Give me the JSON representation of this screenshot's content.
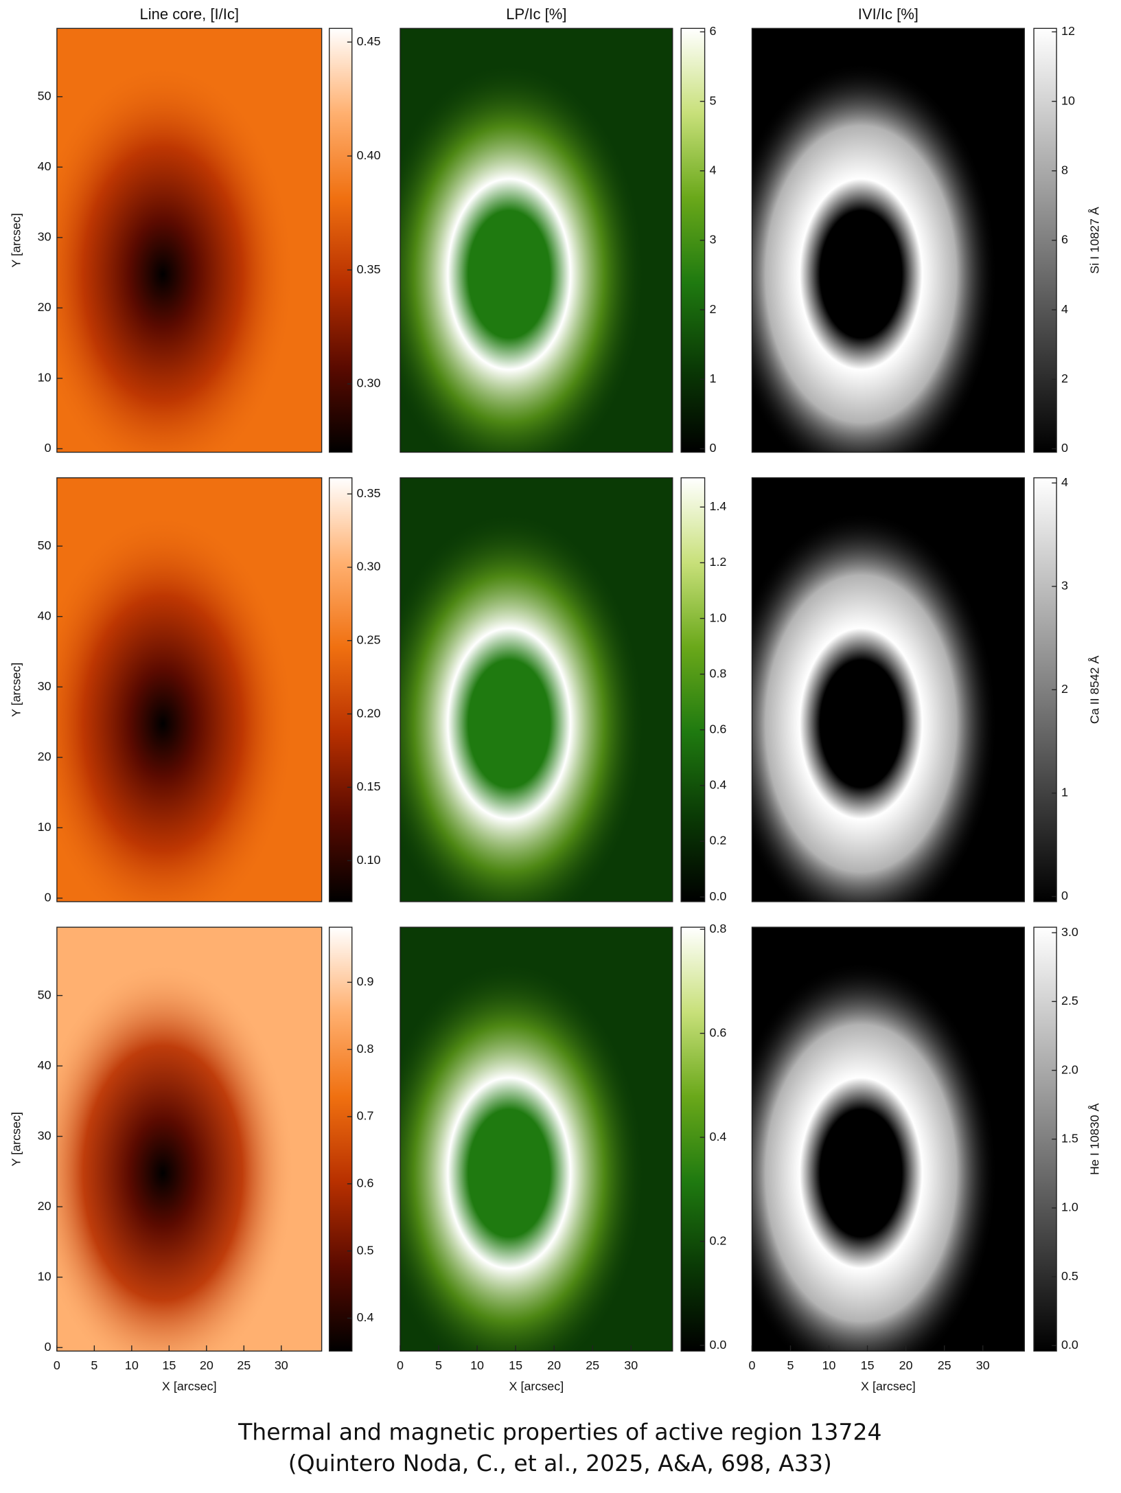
{
  "caption": [
    "Thermal and magnetic properties of active region 13724",
    "(Quintero Noda, C., et al., 2025, A&A, 698, A33)"
  ],
  "chart_data": [
    {
      "type": "image",
      "title": "Line core, [I/Ic]",
      "ylabel": "Y [arcsec]",
      "xlim": [
        0,
        35.4
      ],
      "ylim": [
        -0.5,
        59.7
      ],
      "yticks": [
        0,
        10,
        20,
        30,
        40,
        50
      ],
      "colorbar": {
        "lim": [
          0.27,
          0.456
        ],
        "ticks": [
          {
            "value": 0.3,
            "label": "0.30"
          },
          0.35,
          {
            "value": 0.4,
            "label": "0.40"
          },
          0.45
        ],
        "colormap": [
          "#000000",
          "#5a0a00",
          "#b83000",
          "#f07010",
          "#ffb070",
          "#ffffff"
        ]
      }
    },
    {
      "type": "image",
      "title": "LP/Ic [%]",
      "xlim": [
        0,
        35.4
      ],
      "ylim": [
        -0.5,
        59.7
      ],
      "colorbar": {
        "lim": [
          -0.05,
          6.05
        ],
        "ticks": [
          0,
          1,
          2,
          3,
          4,
          5,
          6
        ],
        "colormap": [
          "#000000",
          "#0a3a05",
          "#1f7a10",
          "#6aa81a",
          "#c8e07a",
          "#ffffff"
        ]
      }
    },
    {
      "type": "image",
      "title": "IVI/Ic [%]",
      "right_label": "Si I 10827 Å",
      "xlim": [
        0,
        35.4
      ],
      "ylim": [
        -0.5,
        59.7
      ],
      "colorbar": {
        "lim": [
          -0.1,
          12.1
        ],
        "ticks": [
          0,
          2,
          4,
          6,
          8,
          10,
          12
        ],
        "colormap": [
          "#000000",
          "#ffffff"
        ]
      }
    },
    {
      "type": "image",
      "ylabel": "Y [arcsec]",
      "xlim": [
        0,
        35.4
      ],
      "ylim": [
        -0.5,
        59.7
      ],
      "yticks": [
        0,
        10,
        20,
        30,
        40,
        50
      ],
      "colorbar": {
        "lim": [
          0.072,
          0.361
        ],
        "ticks": [
          {
            "value": 0.1,
            "label": "0.10"
          },
          0.15,
          {
            "value": 0.2,
            "label": "0.20"
          },
          0.25,
          {
            "value": 0.3,
            "label": "0.30"
          },
          0.35
        ],
        "colormap": [
          "#000000",
          "#5a0a00",
          "#b83000",
          "#f07010",
          "#ffb070",
          "#ffffff"
        ]
      }
    },
    {
      "type": "image",
      "xlim": [
        0,
        35.4
      ],
      "ylim": [
        -0.5,
        59.7
      ],
      "colorbar": {
        "lim": [
          -0.017,
          1.505
        ],
        "ticks": [
          {
            "value": 0,
            "label": "0.0"
          },
          0.2,
          0.4,
          0.6,
          0.8,
          {
            "value": 1,
            "label": "1.0"
          },
          1.2,
          1.4
        ],
        "colormap": [
          "#000000",
          "#0a3a05",
          "#1f7a10",
          "#6aa81a",
          "#c8e07a",
          "#ffffff"
        ]
      }
    },
    {
      "type": "image",
      "right_label": "Ca II 8542 Å",
      "xlim": [
        0,
        35.4
      ],
      "ylim": [
        -0.5,
        59.7
      ],
      "colorbar": {
        "lim": [
          -0.05,
          4.05
        ],
        "ticks": [
          0,
          1,
          2,
          3,
          4
        ],
        "colormap": [
          "#000000",
          "#ffffff"
        ]
      }
    },
    {
      "type": "image",
      "ylabel": "Y [arcsec]",
      "xlabel": "X [arcsec]",
      "xlim": [
        0,
        35.4
      ],
      "ylim": [
        -0.5,
        59.7
      ],
      "xticks": [
        0,
        5,
        10,
        15,
        20,
        25,
        30
      ],
      "yticks": [
        0,
        10,
        20,
        30,
        40,
        50
      ],
      "colorbar": {
        "lim": [
          0.351,
          0.982
        ],
        "ticks": [
          0.4,
          0.5,
          0.6,
          0.7,
          0.8,
          0.9
        ],
        "colormap": [
          "#000000",
          "#5a0a00",
          "#b83000",
          "#f07010",
          "#ffb070",
          "#ffffff"
        ]
      }
    },
    {
      "type": "image",
      "xlabel": "X [arcsec]",
      "xlim": [
        0,
        35.4
      ],
      "ylim": [
        -0.5,
        59.7
      ],
      "xticks": [
        0,
        5,
        10,
        15,
        20,
        25,
        30
      ],
      "colorbar": {
        "lim": [
          -0.011,
          0.804
        ],
        "ticks": [
          {
            "value": 0,
            "label": "0.0"
          },
          0.2,
          0.4,
          0.6,
          0.8
        ],
        "colormap": [
          "#000000",
          "#0a3a05",
          "#1f7a10",
          "#6aa81a",
          "#c8e07a",
          "#ffffff"
        ]
      }
    },
    {
      "type": "image",
      "xlabel": "X [arcsec]",
      "right_label": "He I 10830 Å",
      "xlim": [
        0,
        35.4
      ],
      "ylim": [
        -0.5,
        59.7
      ],
      "xticks": [
        0,
        5,
        10,
        15,
        20,
        25,
        30
      ],
      "colorbar": {
        "lim": [
          -0.04,
          3.04
        ],
        "ticks": [
          {
            "value": 0,
            "label": "0.0"
          },
          0.5,
          {
            "value": 1,
            "label": "1.0"
          },
          1.5,
          {
            "value": 2,
            "label": "2.0"
          },
          2.5,
          {
            "value": 3,
            "label": "3.0"
          }
        ],
        "colormap": [
          "#000000",
          "#ffffff"
        ]
      }
    }
  ]
}
